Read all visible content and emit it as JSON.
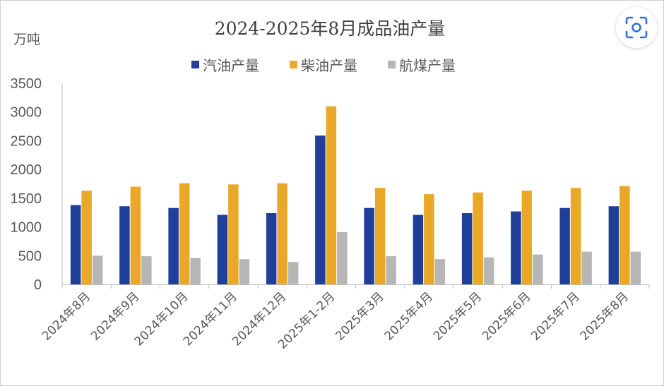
{
  "chart_data": {
    "type": "bar",
    "title": "2024-2025年8月成品油产量",
    "ylabel": "万吨",
    "xlabel": "",
    "ylim": [
      0,
      3500
    ],
    "yticks": [
      0,
      500,
      1000,
      1500,
      2000,
      2500,
      3000,
      3500
    ],
    "grid": false,
    "legend_position": "top-center",
    "categories": [
      "2024年8月",
      "2024年9月",
      "2024年10月",
      "2024年11月",
      "2024年12月",
      "2025年1-2月",
      "2025年3月",
      "2025年4月",
      "2025年5月",
      "2025年6月",
      "2025年7月",
      "2025年8月"
    ],
    "series": [
      {
        "name": "汽油产量",
        "color": "#203f98",
        "values": [
          1380,
          1360,
          1330,
          1210,
          1240,
          2590,
          1330,
          1210,
          1240,
          1270,
          1330,
          1360
        ]
      },
      {
        "name": "柴油产量",
        "color": "#e9a827",
        "values": [
          1630,
          1700,
          1760,
          1740,
          1760,
          3100,
          1680,
          1570,
          1600,
          1630,
          1680,
          1710
        ]
      },
      {
        "name": "航煤产量",
        "color": "#b6b6b6",
        "values": [
          500,
          490,
          460,
          440,
          390,
          910,
          490,
          440,
          470,
          520,
          570,
          570
        ]
      }
    ]
  },
  "ui": {
    "scan_icon": "scan-icon",
    "axis_color": "#bfbfbf",
    "text_color": "#595959"
  }
}
